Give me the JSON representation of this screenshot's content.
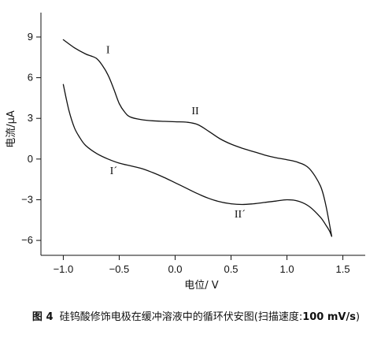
{
  "chart_data": {
    "type": "line",
    "xlabel": "电位/ V",
    "ylabel": "电流/μA",
    "xlim": [
      -1.2,
      1.7
    ],
    "ylim": [
      -7.1,
      10.8
    ],
    "xticks": [
      -1.0,
      -0.5,
      0.0,
      0.5,
      1.0,
      1.5
    ],
    "xtick_labels": [
      "−1.0",
      "−0.5",
      "0.0",
      "0.5",
      "1.0",
      "1.5"
    ],
    "yticks": [
      9,
      6,
      3,
      0,
      -3,
      -6
    ],
    "ytick_labels": [
      "9",
      "6",
      "3",
      "0",
      "−3",
      "−6"
    ],
    "grid": false,
    "series": [
      {
        "branch": "upper",
        "x": [
          -1.0,
          -0.9,
          -0.8,
          -0.75,
          -0.7,
          -0.65,
          -0.6,
          -0.55,
          -0.5,
          -0.45,
          -0.4,
          -0.3,
          -0.2,
          -0.1,
          0.0,
          0.1,
          0.2,
          0.3,
          0.4,
          0.5,
          0.6,
          0.7,
          0.8,
          0.9,
          1.0,
          1.1,
          1.2,
          1.3,
          1.35,
          1.4
        ],
        "y": [
          8.8,
          8.2,
          7.75,
          7.6,
          7.4,
          6.9,
          6.2,
          5.2,
          4.1,
          3.45,
          3.1,
          2.9,
          2.82,
          2.78,
          2.75,
          2.72,
          2.55,
          2.05,
          1.5,
          1.1,
          0.8,
          0.55,
          0.3,
          0.1,
          -0.05,
          -0.25,
          -0.7,
          -2.0,
          -3.5,
          -5.7
        ]
      },
      {
        "branch": "lower",
        "x": [
          -1.0,
          -0.95,
          -0.9,
          -0.85,
          -0.8,
          -0.7,
          -0.6,
          -0.5,
          -0.4,
          -0.3,
          -0.2,
          -0.1,
          0.0,
          0.1,
          0.2,
          0.3,
          0.4,
          0.5,
          0.6,
          0.7,
          0.8,
          0.9,
          1.0,
          1.1,
          1.2,
          1.3,
          1.35,
          1.38,
          1.4
        ],
        "y": [
          5.5,
          3.6,
          2.3,
          1.55,
          1.0,
          0.4,
          0.0,
          -0.3,
          -0.5,
          -0.7,
          -1.0,
          -1.35,
          -1.75,
          -2.15,
          -2.55,
          -2.9,
          -3.15,
          -3.3,
          -3.35,
          -3.3,
          -3.2,
          -3.1,
          -3.0,
          -3.1,
          -3.5,
          -4.3,
          -4.9,
          -5.3,
          -5.7
        ]
      }
    ],
    "annotations": [
      {
        "text": "I",
        "x": -0.6,
        "y": 7.8
      },
      {
        "text": "II",
        "x": 0.18,
        "y": 3.3
      },
      {
        "text": "I´",
        "x": -0.55,
        "y": -1.1
      },
      {
        "text": "II´",
        "x": 0.58,
        "y": -4.3
      }
    ]
  },
  "caption": {
    "figure_label": "图 4",
    "text": "硅钨酸修饰电极在缓冲溶液中的循环伏安图(扫描速度:",
    "speed": "100 mV/s",
    "closing": ")"
  }
}
